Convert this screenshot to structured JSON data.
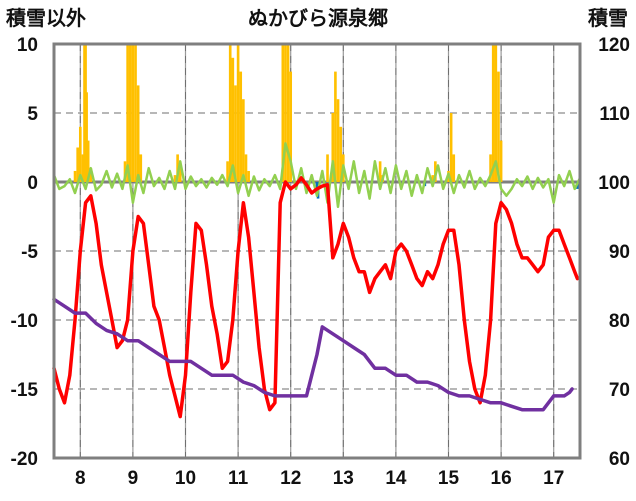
{
  "chart_data": {
    "type": "line",
    "title": "ぬかびら源泉郷",
    "ylabel_left": "積雪以外",
    "ylabel_right": "積雪",
    "x_ticks": [
      "8",
      "9",
      "10",
      "11",
      "12",
      "13",
      "14",
      "15",
      "16",
      "17"
    ],
    "x_range": [
      7.5,
      17.5
    ],
    "y_left_ticks": [
      "10",
      "5",
      "0",
      "-5",
      "-10",
      "-15",
      "-20"
    ],
    "y_left_range": [
      -20,
      10
    ],
    "y_right_ticks": [
      "120",
      "110",
      "100",
      "90",
      "80",
      "70",
      "60"
    ],
    "y_right_range": [
      60,
      120
    ],
    "grid": "dashed vertical and horizontal",
    "colors": {
      "precipitation": "#FFC000",
      "wind": "#92D050",
      "temperature": "#FF0000",
      "snow_depth": "#7030A0",
      "other": "#0070C0"
    },
    "series": [
      {
        "key": "precipitation",
        "kind": "bar",
        "axis": "left",
        "values": [
          [
            7.9,
            0.8
          ],
          [
            7.95,
            2.5
          ],
          [
            8.0,
            4
          ],
          [
            8.05,
            2
          ],
          [
            8.08,
            10
          ],
          [
            8.1,
            10
          ],
          [
            8.12,
            6.5
          ],
          [
            8.15,
            3
          ],
          [
            8.2,
            1
          ],
          [
            8.85,
            1.5
          ],
          [
            8.9,
            10
          ],
          [
            8.95,
            10
          ],
          [
            9.0,
            10
          ],
          [
            9.05,
            10
          ],
          [
            9.1,
            7
          ],
          [
            9.15,
            2
          ],
          [
            9.8,
            0.5
          ],
          [
            9.85,
            2
          ],
          [
            9.9,
            1
          ],
          [
            10.8,
            1.5
          ],
          [
            10.85,
            10
          ],
          [
            10.9,
            9
          ],
          [
            10.95,
            7
          ],
          [
            11.0,
            10
          ],
          [
            11.05,
            8
          ],
          [
            11.1,
            6
          ],
          [
            11.15,
            2
          ],
          [
            11.2,
            0.8
          ],
          [
            11.85,
            10
          ],
          [
            11.9,
            10
          ],
          [
            11.95,
            10
          ],
          [
            12.0,
            8
          ],
          [
            12.7,
            2
          ],
          [
            12.8,
            5
          ],
          [
            12.85,
            8
          ],
          [
            12.9,
            6
          ],
          [
            12.95,
            4
          ],
          [
            13.0,
            2
          ],
          [
            13.7,
            1.5
          ],
          [
            13.75,
            0.5
          ],
          [
            14.7,
            0.5
          ],
          [
            14.75,
            1.5
          ],
          [
            15.0,
            0.8
          ],
          [
            15.05,
            5
          ],
          [
            15.1,
            2
          ],
          [
            15.8,
            2
          ],
          [
            15.85,
            10
          ],
          [
            15.9,
            10
          ],
          [
            15.95,
            8
          ],
          [
            16.0,
            3
          ]
        ]
      },
      {
        "key": "wind",
        "kind": "line",
        "axis": "left",
        "values": [
          [
            7.5,
            0.5
          ],
          [
            7.6,
            -0.5
          ],
          [
            7.7,
            -0.3
          ],
          [
            7.8,
            0.2
          ],
          [
            7.9,
            -0.8
          ],
          [
            8.0,
            0.5
          ],
          [
            8.1,
            -0.5
          ],
          [
            8.2,
            1
          ],
          [
            8.3,
            -0.6
          ],
          [
            8.4,
            -0.2
          ],
          [
            8.5,
            0.8
          ],
          [
            8.6,
            -0.4
          ],
          [
            8.7,
            0.6
          ],
          [
            8.8,
            -0.5
          ],
          [
            8.9,
            1.2
          ],
          [
            9.0,
            -1.5
          ],
          [
            9.1,
            0.5
          ],
          [
            9.2,
            -0.8
          ],
          [
            9.3,
            1
          ],
          [
            9.4,
            -0.3
          ],
          [
            9.5,
            0.3
          ],
          [
            9.6,
            -0.5
          ],
          [
            9.7,
            0.8
          ],
          [
            9.8,
            -0.5
          ],
          [
            9.9,
            1.5
          ],
          [
            10.0,
            -0.5
          ],
          [
            10.1,
            0.4
          ],
          [
            10.2,
            -0.3
          ],
          [
            10.3,
            0.2
          ],
          [
            10.4,
            -0.4
          ],
          [
            10.5,
            0.3
          ],
          [
            10.6,
            -0.2
          ],
          [
            10.7,
            0.5
          ],
          [
            10.8,
            -0.3
          ],
          [
            10.9,
            1.2
          ],
          [
            11.0,
            -0.8
          ],
          [
            11.1,
            0.5
          ],
          [
            11.2,
            -1
          ],
          [
            11.3,
            0.4
          ],
          [
            11.4,
            -0.6
          ],
          [
            11.5,
            0.2
          ],
          [
            11.6,
            -0.3
          ],
          [
            11.7,
            0.5
          ],
          [
            11.8,
            -0.5
          ],
          [
            11.9,
            2.8
          ],
          [
            12.0,
            1.5
          ],
          [
            12.1,
            -0.5
          ],
          [
            12.2,
            1
          ],
          [
            12.3,
            -0.8
          ],
          [
            12.4,
            0.5
          ],
          [
            12.5,
            -1
          ],
          [
            12.6,
            0.8
          ],
          [
            12.7,
            -1.5
          ],
          [
            12.8,
            1.5
          ],
          [
            12.9,
            -1.8
          ],
          [
            13.0,
            1.2
          ],
          [
            13.1,
            -0.5
          ],
          [
            13.2,
            1.5
          ],
          [
            13.3,
            -0.8
          ],
          [
            13.4,
            0.8
          ],
          [
            13.5,
            -1.2
          ],
          [
            13.6,
            1.5
          ],
          [
            13.7,
            -0.5
          ],
          [
            13.8,
            1
          ],
          [
            13.9,
            -0.8
          ],
          [
            14.0,
            1.2
          ],
          [
            14.1,
            -0.5
          ],
          [
            14.2,
            0.8
          ],
          [
            14.3,
            -1
          ],
          [
            14.4,
            0.5
          ],
          [
            14.5,
            -0.8
          ],
          [
            14.6,
            1
          ],
          [
            14.7,
            -0.3
          ],
          [
            14.8,
            1.2
          ],
          [
            14.9,
            -0.5
          ],
          [
            15.0,
            0.6
          ],
          [
            15.1,
            -0.8
          ],
          [
            15.2,
            0.5
          ],
          [
            15.3,
            -0.4
          ],
          [
            15.4,
            0.8
          ],
          [
            15.5,
            -0.5
          ],
          [
            15.6,
            0.3
          ],
          [
            15.7,
            -0.3
          ],
          [
            15.8,
            0.5
          ],
          [
            15.9,
            1.5
          ],
          [
            16.0,
            -0.5
          ],
          [
            16.1,
            -1
          ],
          [
            16.2,
            -0.5
          ],
          [
            16.3,
            0.2
          ],
          [
            16.4,
            -0.3
          ],
          [
            16.5,
            0.4
          ],
          [
            16.6,
            -0.5
          ],
          [
            16.7,
            0.3
          ],
          [
            16.8,
            -0.4
          ],
          [
            16.9,
            0.2
          ],
          [
            17.0,
            -1.5
          ],
          [
            17.1,
            0.5
          ],
          [
            17.2,
            -0.3
          ],
          [
            17.3,
            0.8
          ],
          [
            17.4,
            -0.5
          ],
          [
            17.5,
            0.3
          ]
        ]
      },
      {
        "key": "temperature",
        "kind": "line",
        "axis": "left",
        "values": [
          [
            7.5,
            -13.5
          ],
          [
            7.6,
            -15
          ],
          [
            7.7,
            -16
          ],
          [
            7.8,
            -14
          ],
          [
            7.9,
            -10
          ],
          [
            8.0,
            -5
          ],
          [
            8.1,
            -1.5
          ],
          [
            8.2,
            -1
          ],
          [
            8.3,
            -3
          ],
          [
            8.4,
            -6
          ],
          [
            8.5,
            -8
          ],
          [
            8.6,
            -10
          ],
          [
            8.7,
            -12
          ],
          [
            8.8,
            -11.5
          ],
          [
            8.9,
            -10
          ],
          [
            9.0,
            -5
          ],
          [
            9.1,
            -2.5
          ],
          [
            9.2,
            -3
          ],
          [
            9.3,
            -6
          ],
          [
            9.4,
            -9
          ],
          [
            9.5,
            -10
          ],
          [
            9.6,
            -12
          ],
          [
            9.7,
            -14
          ],
          [
            9.8,
            -15.5
          ],
          [
            9.9,
            -17
          ],
          [
            10.0,
            -14
          ],
          [
            10.1,
            -8
          ],
          [
            10.2,
            -3
          ],
          [
            10.3,
            -3.5
          ],
          [
            10.4,
            -6
          ],
          [
            10.5,
            -9
          ],
          [
            10.6,
            -11
          ],
          [
            10.7,
            -13.5
          ],
          [
            10.8,
            -13
          ],
          [
            10.9,
            -10
          ],
          [
            11.0,
            -5
          ],
          [
            11.1,
            -1.5
          ],
          [
            11.2,
            -4
          ],
          [
            11.3,
            -8
          ],
          [
            11.4,
            -12
          ],
          [
            11.5,
            -15
          ],
          [
            11.6,
            -16.5
          ],
          [
            11.7,
            -16
          ],
          [
            11.8,
            -1.5
          ],
          [
            11.9,
            0
          ],
          [
            12.0,
            -0.5
          ],
          [
            12.1,
            -0.2
          ],
          [
            12.2,
            0.3
          ],
          [
            12.3,
            -0.2
          ],
          [
            12.4,
            -0.8
          ],
          [
            12.5,
            -0.5
          ],
          [
            12.6,
            -0.3
          ],
          [
            12.7,
            -0.2
          ],
          [
            12.8,
            -5.5
          ],
          [
            12.9,
            -4.5
          ],
          [
            13.0,
            -3
          ],
          [
            13.1,
            -4
          ],
          [
            13.2,
            -5.5
          ],
          [
            13.3,
            -6.5
          ],
          [
            13.4,
            -6.5
          ],
          [
            13.5,
            -8
          ],
          [
            13.6,
            -7
          ],
          [
            13.7,
            -6.5
          ],
          [
            13.8,
            -6
          ],
          [
            13.9,
            -7
          ],
          [
            14.0,
            -5
          ],
          [
            14.1,
            -4.5
          ],
          [
            14.2,
            -5
          ],
          [
            14.3,
            -6
          ],
          [
            14.4,
            -7
          ],
          [
            14.5,
            -7.5
          ],
          [
            14.6,
            -6.5
          ],
          [
            14.7,
            -7
          ],
          [
            14.8,
            -6
          ],
          [
            14.9,
            -4.5
          ],
          [
            15.0,
            -3.5
          ],
          [
            15.1,
            -3.5
          ],
          [
            15.2,
            -6
          ],
          [
            15.3,
            -10
          ],
          [
            15.4,
            -13
          ],
          [
            15.5,
            -15
          ],
          [
            15.6,
            -16
          ],
          [
            15.7,
            -14
          ],
          [
            15.8,
            -10
          ],
          [
            15.9,
            -3
          ],
          [
            16.0,
            -1.5
          ],
          [
            16.1,
            -2
          ],
          [
            16.2,
            -3
          ],
          [
            16.3,
            -4.5
          ],
          [
            16.4,
            -5.5
          ],
          [
            16.5,
            -5.5
          ],
          [
            16.6,
            -6
          ],
          [
            16.7,
            -6.5
          ],
          [
            16.8,
            -6
          ],
          [
            16.9,
            -4
          ],
          [
            17.0,
            -3.5
          ],
          [
            17.1,
            -3.5
          ],
          [
            17.2,
            -4.5
          ],
          [
            17.3,
            -5.5
          ],
          [
            17.4,
            -6.5
          ],
          [
            17.45,
            -7
          ]
        ]
      },
      {
        "key": "snow_depth",
        "kind": "line",
        "axis": "right",
        "values": [
          [
            7.5,
            83
          ],
          [
            7.7,
            82
          ],
          [
            7.9,
            81
          ],
          [
            8.1,
            81
          ],
          [
            8.3,
            79.5
          ],
          [
            8.5,
            78.5
          ],
          [
            8.7,
            78
          ],
          [
            8.9,
            77
          ],
          [
            9.1,
            77
          ],
          [
            9.3,
            76
          ],
          [
            9.5,
            75
          ],
          [
            9.7,
            74
          ],
          [
            9.9,
            74
          ],
          [
            10.1,
            74
          ],
          [
            10.3,
            73
          ],
          [
            10.5,
            72
          ],
          [
            10.7,
            72
          ],
          [
            10.9,
            72
          ],
          [
            11.1,
            71
          ],
          [
            11.3,
            70.5
          ],
          [
            11.5,
            69.5
          ],
          [
            11.7,
            69
          ],
          [
            11.9,
            69
          ],
          [
            12.1,
            69
          ],
          [
            12.3,
            69
          ],
          [
            12.5,
            75
          ],
          [
            12.6,
            79
          ],
          [
            12.8,
            78
          ],
          [
            13.0,
            77
          ],
          [
            13.2,
            76
          ],
          [
            13.4,
            75
          ],
          [
            13.6,
            73
          ],
          [
            13.8,
            73
          ],
          [
            14.0,
            72
          ],
          [
            14.2,
            72
          ],
          [
            14.4,
            71
          ],
          [
            14.6,
            71
          ],
          [
            14.8,
            70.5
          ],
          [
            15.0,
            69.5
          ],
          [
            15.2,
            69
          ],
          [
            15.4,
            69
          ],
          [
            15.6,
            68.5
          ],
          [
            15.8,
            68
          ],
          [
            16.0,
            68
          ],
          [
            16.2,
            67.5
          ],
          [
            16.4,
            67
          ],
          [
            16.6,
            67
          ],
          [
            16.8,
            67
          ],
          [
            17.0,
            69
          ],
          [
            17.2,
            69
          ],
          [
            17.3,
            69.5
          ],
          [
            17.35,
            70
          ]
        ]
      },
      {
        "key": "other",
        "kind": "bar",
        "axis": "left",
        "values": [
          [
            12.5,
            -0.5
          ],
          [
            12.52,
            -1.2
          ],
          [
            14.55,
            -0.3
          ],
          [
            17.45,
            -0.5
          ]
        ]
      }
    ]
  }
}
